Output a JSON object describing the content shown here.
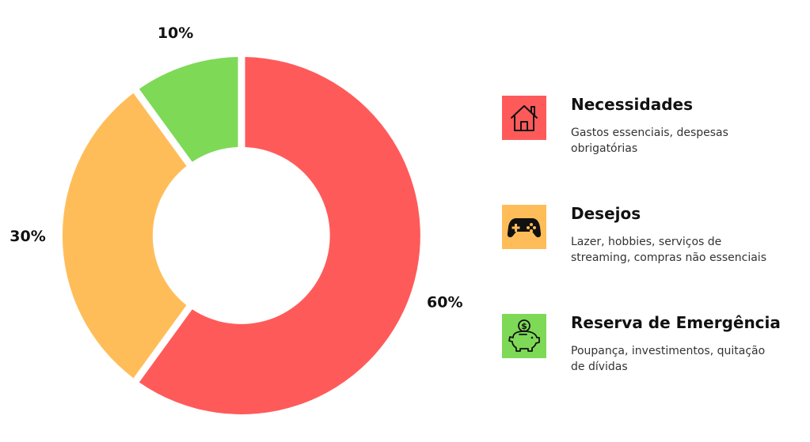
{
  "chart_data": {
    "type": "pie",
    "variant": "donut",
    "title": "",
    "categories": [
      "Necessidades",
      "Desejos",
      "Reserva de Emergência"
    ],
    "values": [
      60,
      30,
      10
    ],
    "labels": [
      "60%",
      "30%",
      "10%"
    ],
    "colors": [
      "#ff5a5a",
      "#ffbd59",
      "#7ed957"
    ],
    "legend_position": "right"
  },
  "legend": [
    {
      "title": "Necessidades",
      "description": "Gastos essenciais, despesas obrigatórias",
      "icon": "house-icon",
      "color": "#ff5a5a"
    },
    {
      "title": "Desejos",
      "description": "Lazer, hobbies, serviços de streaming, compras não essenciais",
      "icon": "gamepad-icon",
      "color": "#ffbd59"
    },
    {
      "title": "Reserva de Emergência",
      "description": "Poupança, investimentos, quitação de dívidas",
      "icon": "piggy-bank-icon",
      "color": "#7ed957"
    }
  ]
}
